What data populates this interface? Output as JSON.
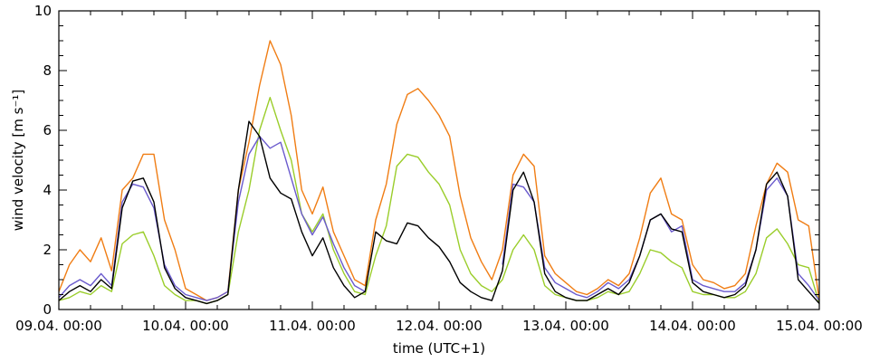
{
  "chart_data": {
    "type": "line",
    "xlabel": "time (UTC+1)",
    "ylabel": "wind velocity [m s⁻¹]",
    "ylim": [
      0,
      10
    ],
    "yticks": [
      0,
      2,
      4,
      6,
      8,
      10
    ],
    "xlim": [
      "2014-04-09 00:00",
      "2014-04-15 00:00"
    ],
    "xticks": [
      "09.04. 00:00",
      "10.04. 00:00",
      "11.04. 00:00",
      "12.04. 00:00",
      "13.04. 00:00",
      "14.04. 00:00",
      "15.04. 00:00"
    ],
    "grid": false,
    "legend": "none",
    "series": [
      {
        "color": "#f07d14",
        "x": [
          "09.04. 00:00",
          "09.04. 02:00",
          "09.04. 04:00",
          "09.04. 06:00",
          "09.04. 08:00",
          "09.04. 10:00",
          "09.04. 12:00",
          "09.04. 14:00",
          "09.04. 16:00",
          "09.04. 18:00",
          "09.04. 20:00",
          "09.04. 22:00",
          "10.04. 00:00",
          "10.04. 02:00",
          "10.04. 04:00",
          "10.04. 06:00",
          "10.04. 08:00",
          "10.04. 10:00",
          "10.04. 12:00",
          "10.04. 14:00",
          "10.04. 16:00",
          "10.04. 18:00",
          "10.04. 20:00",
          "10.04. 22:00",
          "11.04. 00:00",
          "11.04. 02:00",
          "11.04. 04:00",
          "11.04. 06:00",
          "11.04. 08:00",
          "11.04. 10:00",
          "11.04. 12:00",
          "11.04. 14:00",
          "11.04. 16:00",
          "11.04. 18:00",
          "11.04. 20:00",
          "11.04. 22:00",
          "12.04. 00:00",
          "12.04. 02:00",
          "12.04. 04:00",
          "12.04. 06:00",
          "12.04. 08:00",
          "12.04. 10:00",
          "12.04. 12:00",
          "12.04. 14:00",
          "12.04. 16:00",
          "12.04. 18:00",
          "12.04. 20:00",
          "12.04. 22:00",
          "13.04. 00:00",
          "13.04. 02:00",
          "13.04. 04:00",
          "13.04. 06:00",
          "13.04. 08:00",
          "13.04. 10:00",
          "13.04. 12:00",
          "13.04. 14:00",
          "13.04. 16:00",
          "13.04. 18:00",
          "13.04. 20:00",
          "13.04. 22:00",
          "14.04. 00:00",
          "14.04. 02:00",
          "14.04. 04:00",
          "14.04. 06:00",
          "14.04. 08:00",
          "14.04. 10:00",
          "14.04. 12:00",
          "14.04. 14:00",
          "14.04. 16:00",
          "14.04. 18:00",
          "14.04. 20:00",
          "14.04. 22:00",
          "15.04. 00:00"
        ],
        "values": [
          0.6,
          1.5,
          2.0,
          1.6,
          2.4,
          1.3,
          4.0,
          4.4,
          5.2,
          5.2,
          3.0,
          2.0,
          0.7,
          0.5,
          0.3,
          0.4,
          0.6,
          4.0,
          5.6,
          7.5,
          9.0,
          8.2,
          6.5,
          4.0,
          3.2,
          4.1,
          2.6,
          1.8,
          1.0,
          0.8,
          3.0,
          4.2,
          6.2,
          7.2,
          7.4,
          7.0,
          6.5,
          5.8,
          3.8,
          2.4,
          1.6,
          1.0,
          2.0,
          4.5,
          5.2,
          4.8,
          1.8,
          1.2,
          0.9,
          0.6,
          0.5,
          0.7,
          1.0,
          0.8,
          1.2,
          2.4,
          3.9,
          4.4,
          3.2,
          3.0,
          1.5,
          1.0,
          0.9,
          0.7,
          0.8,
          1.2,
          2.8,
          4.2,
          4.9,
          4.6,
          3.0,
          2.8,
          0.3
        ]
      },
      {
        "color": "#9acd2a",
        "x": [
          "09.04. 00:00",
          "09.04. 02:00",
          "09.04. 04:00",
          "09.04. 06:00",
          "09.04. 08:00",
          "09.04. 10:00",
          "09.04. 12:00",
          "09.04. 14:00",
          "09.04. 16:00",
          "09.04. 18:00",
          "09.04. 20:00",
          "09.04. 22:00",
          "10.04. 00:00",
          "10.04. 02:00",
          "10.04. 04:00",
          "10.04. 06:00",
          "10.04. 08:00",
          "10.04. 10:00",
          "10.04. 12:00",
          "10.04. 14:00",
          "10.04. 16:00",
          "10.04. 18:00",
          "10.04. 20:00",
          "10.04. 22:00",
          "11.04. 00:00",
          "11.04. 02:00",
          "11.04. 04:00",
          "11.04. 06:00",
          "11.04. 08:00",
          "11.04. 10:00",
          "11.04. 12:00",
          "11.04. 14:00",
          "11.04. 16:00",
          "11.04. 18:00",
          "11.04. 20:00",
          "11.04. 22:00",
          "12.04. 00:00",
          "12.04. 02:00",
          "12.04. 04:00",
          "12.04. 06:00",
          "12.04. 08:00",
          "12.04. 10:00",
          "12.04. 12:00",
          "12.04. 14:00",
          "12.04. 16:00",
          "12.04. 18:00",
          "12.04. 20:00",
          "12.04. 22:00",
          "13.04. 00:00",
          "13.04. 02:00",
          "13.04. 04:00",
          "13.04. 06:00",
          "13.04. 08:00",
          "13.04. 10:00",
          "13.04. 12:00",
          "13.04. 14:00",
          "13.04. 16:00",
          "13.04. 18:00",
          "13.04. 20:00",
          "13.04. 22:00",
          "14.04. 00:00",
          "14.04. 02:00",
          "14.04. 04:00",
          "14.04. 06:00",
          "14.04. 08:00",
          "14.04. 10:00",
          "14.04. 12:00",
          "14.04. 14:00",
          "14.04. 16:00",
          "14.04. 18:00",
          "14.04. 20:00",
          "14.04. 22:00",
          "15.04. 00:00"
        ],
        "values": [
          0.3,
          0.4,
          0.6,
          0.5,
          0.8,
          0.6,
          2.2,
          2.5,
          2.6,
          1.8,
          0.8,
          0.5,
          0.3,
          0.3,
          0.2,
          0.3,
          0.5,
          2.6,
          4.0,
          6.0,
          7.1,
          6.0,
          5.0,
          3.2,
          2.6,
          3.2,
          2.0,
          1.2,
          0.6,
          0.5,
          1.8,
          2.8,
          4.8,
          5.2,
          5.1,
          4.6,
          4.2,
          3.5,
          2.0,
          1.2,
          0.8,
          0.6,
          1.0,
          2.0,
          2.5,
          2.0,
          0.8,
          0.5,
          0.4,
          0.3,
          0.3,
          0.4,
          0.6,
          0.5,
          0.6,
          1.2,
          2.0,
          1.9,
          1.6,
          1.4,
          0.6,
          0.5,
          0.5,
          0.4,
          0.4,
          0.6,
          1.2,
          2.4,
          2.7,
          2.2,
          1.5,
          1.4,
          0.2
        ]
      },
      {
        "color": "#6a5acd",
        "x": [
          "09.04. 00:00",
          "09.04. 02:00",
          "09.04. 04:00",
          "09.04. 06:00",
          "09.04. 08:00",
          "09.04. 10:00",
          "09.04. 12:00",
          "09.04. 14:00",
          "09.04. 16:00",
          "09.04. 18:00",
          "09.04. 20:00",
          "09.04. 22:00",
          "10.04. 00:00",
          "10.04. 02:00",
          "10.04. 04:00",
          "10.04. 06:00",
          "10.04. 08:00",
          "10.04. 10:00",
          "10.04. 12:00",
          "10.04. 14:00",
          "10.04. 16:00",
          "10.04. 18:00",
          "10.04. 20:00",
          "10.04. 22:00",
          "11.04. 00:00",
          "11.04. 02:00",
          "11.04. 04:00",
          "11.04. 06:00",
          "11.04. 08:00",
          "11.04. 10:00",
          "11.04. 12:00",
          "11.04. 14:00",
          "11.04. 16:00",
          "11.04. 18:00",
          "11.04. 20:00",
          "11.04. 22:00",
          "12.04. 00:00",
          "12.04. 02:00",
          "12.04. 04:00",
          "12.04. 06:00",
          "12.04. 08:00",
          "12.04. 10:00",
          "12.04. 12:00",
          "12.04. 14:00",
          "12.04. 16:00",
          "12.04. 18:00",
          "12.04. 20:00",
          "12.04. 22:00",
          "13.04. 00:00",
          "13.04. 02:00",
          "13.04. 04:00",
          "13.04. 06:00",
          "13.04. 08:00",
          "13.04. 10:00",
          "13.04. 12:00",
          "13.04. 14:00",
          "13.04. 16:00",
          "13.04. 18:00",
          "13.04. 20:00",
          "13.04. 22:00",
          "14.04. 00:00",
          "14.04. 02:00",
          "14.04. 04:00",
          "14.04. 06:00",
          "14.04. 08:00",
          "14.04. 10:00",
          "14.04. 12:00",
          "14.04. 14:00",
          "14.04. 16:00",
          "14.04. 18:00",
          "14.04. 20:00",
          "14.04. 22:00",
          "15.04. 00:00"
        ],
        "values": [
          0.4,
          0.8,
          1.0,
          0.8,
          1.2,
          0.8,
          3.6,
          4.2,
          4.1,
          3.4,
          1.5,
          0.8,
          0.5,
          0.4,
          0.3,
          0.4,
          0.6,
          3.6,
          5.2,
          5.8,
          5.4,
          5.6,
          4.4,
          3.2,
          2.5,
          3.1,
          2.2,
          1.4,
          0.8,
          0.6,
          null,
          null,
          null,
          null,
          null,
          null,
          null,
          null,
          null,
          null,
          null,
          null,
          1.5,
          4.2,
          4.1,
          3.6,
          1.4,
          0.9,
          0.7,
          0.5,
          0.4,
          0.6,
          0.9,
          0.7,
          1.0,
          1.8,
          3.0,
          3.2,
          2.6,
          2.8,
          1.0,
          0.8,
          0.7,
          0.6,
          0.6,
          0.9,
          2.0,
          4.0,
          4.4,
          3.8,
          1.2,
          0.8,
          0.3
        ]
      },
      {
        "color": "#000000",
        "x": [
          "09.04. 00:00",
          "09.04. 02:00",
          "09.04. 04:00",
          "09.04. 06:00",
          "09.04. 08:00",
          "09.04. 10:00",
          "09.04. 12:00",
          "09.04. 14:00",
          "09.04. 16:00",
          "09.04. 18:00",
          "09.04. 20:00",
          "09.04. 22:00",
          "10.04. 00:00",
          "10.04. 02:00",
          "10.04. 04:00",
          "10.04. 06:00",
          "10.04. 08:00",
          "10.04. 10:00",
          "10.04. 12:00",
          "10.04. 14:00",
          "10.04. 16:00",
          "10.04. 18:00",
          "10.04. 20:00",
          "10.04. 22:00",
          "11.04. 00:00",
          "11.04. 02:00",
          "11.04. 04:00",
          "11.04. 06:00",
          "11.04. 08:00",
          "11.04. 10:00",
          "11.04. 12:00",
          "11.04. 14:00",
          "11.04. 16:00",
          "11.04. 18:00",
          "11.04. 20:00",
          "11.04. 22:00",
          "12.04. 00:00",
          "12.04. 02:00",
          "12.04. 04:00",
          "12.04. 06:00",
          "12.04. 08:00",
          "12.04. 10:00",
          "12.04. 12:00",
          "12.04. 14:00",
          "12.04. 16:00",
          "12.04. 18:00",
          "12.04. 20:00",
          "12.04. 22:00",
          "13.04. 00:00",
          "13.04. 02:00",
          "13.04. 04:00",
          "13.04. 06:00",
          "13.04. 08:00",
          "13.04. 10:00",
          "13.04. 12:00",
          "13.04. 14:00",
          "13.04. 16:00",
          "13.04. 18:00",
          "13.04. 20:00",
          "13.04. 22:00",
          "14.04. 00:00",
          "14.04. 02:00",
          "14.04. 04:00",
          "14.04. 06:00",
          "14.04. 08:00",
          "14.04. 10:00",
          "14.04. 12:00",
          "14.04. 14:00",
          "14.04. 16:00",
          "14.04. 18:00",
          "14.04. 20:00",
          "14.04. 22:00",
          "15.04. 00:00"
        ],
        "values": [
          0.3,
          0.6,
          0.8,
          0.6,
          1.0,
          0.7,
          3.4,
          4.3,
          4.4,
          3.6,
          1.4,
          0.7,
          0.4,
          0.3,
          0.2,
          0.3,
          0.5,
          4.0,
          6.3,
          5.8,
          4.4,
          3.9,
          3.7,
          2.6,
          1.8,
          2.4,
          1.4,
          0.8,
          0.4,
          0.6,
          2.6,
          2.3,
          2.2,
          2.9,
          2.8,
          2.4,
          2.1,
          1.6,
          0.9,
          0.6,
          0.4,
          0.3,
          1.3,
          4.0,
          4.6,
          3.6,
          1.2,
          0.6,
          0.4,
          0.3,
          0.3,
          0.5,
          0.7,
          0.5,
          0.9,
          1.8,
          3.0,
          3.2,
          2.7,
          2.6,
          0.9,
          0.6,
          0.5,
          0.4,
          0.5,
          0.8,
          2.0,
          4.2,
          4.6,
          3.8,
          1.0,
          0.6,
          0.2
        ]
      }
    ]
  }
}
